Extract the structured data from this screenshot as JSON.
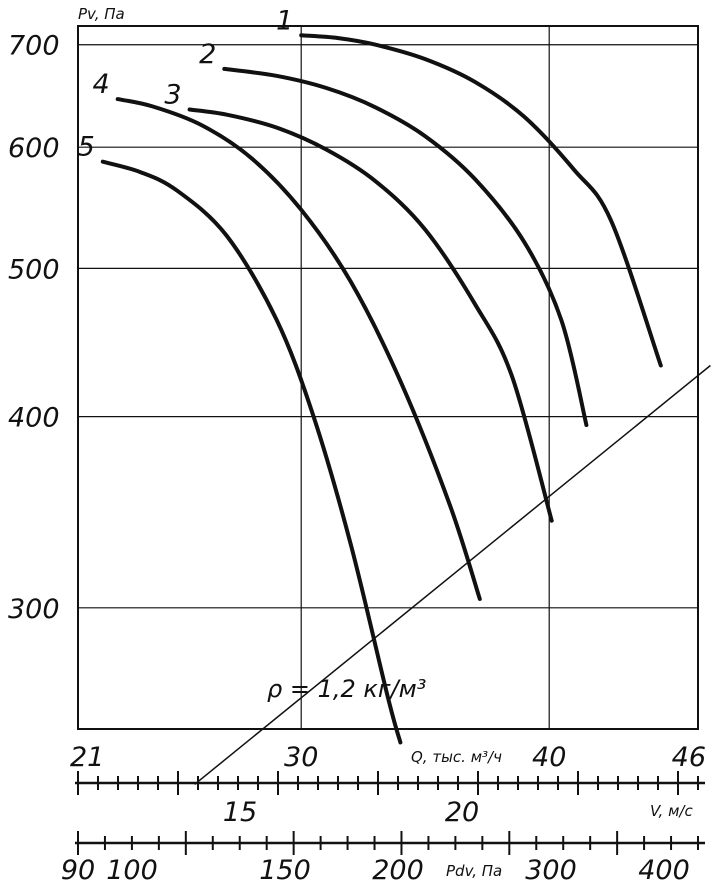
{
  "chart_data": {
    "type": "line",
    "xlabel": "Q, тыс. м³/ч",
    "ylabel": "Pv, Па",
    "annotation": "ρ = 1,2 кг/м³",
    "x_range": [
      21,
      46
    ],
    "y_range": [
      250,
      720
    ],
    "y_scale": "log",
    "x_ticks": [
      {
        "value": 21,
        "label": "21"
      },
      {
        "value": 30,
        "label": "30"
      },
      {
        "value": 40,
        "label": "40"
      },
      {
        "value": 46,
        "label": "46"
      }
    ],
    "y_ticks": [
      {
        "value": 300,
        "label": "300"
      },
      {
        "value": 400,
        "label": "400"
      },
      {
        "value": 500,
        "label": "500"
      },
      {
        "value": 600,
        "label": "600"
      },
      {
        "value": 700,
        "label": "700"
      }
    ],
    "grid_x": [
      30,
      40
    ],
    "grid_y": [
      300,
      400,
      500,
      600,
      700
    ],
    "series": [
      {
        "name": "1",
        "x": [
          30.0,
          31.5,
          33.0,
          35.0,
          37.0,
          39.0,
          41.0,
          42.5,
          44.5
        ],
        "y": [
          710,
          707,
          700,
          685,
          662,
          628,
          580,
          537,
          432
        ]
      },
      {
        "name": "2",
        "x": [
          26.9,
          29.0,
          31.0,
          33.0,
          35.0,
          37.0,
          39.0,
          40.5,
          41.5
        ],
        "y": [
          675,
          668,
          656,
          637,
          610,
          572,
          520,
          462,
          395
        ]
      },
      {
        "name": "3",
        "x": [
          25.5,
          27.0,
          29.0,
          31.0,
          33.0,
          35.0,
          37.0,
          38.5,
          40.1
        ],
        "y": [
          635,
          630,
          618,
          598,
          570,
          530,
          474,
          425,
          342
        ]
      },
      {
        "name": "4",
        "x": [
          22.6,
          24.0,
          26.0,
          28.0,
          30.0,
          32.0,
          34.0,
          36.0,
          37.2
        ],
        "y": [
          645,
          638,
          620,
          590,
          546,
          490,
          422,
          350,
          304
        ]
      },
      {
        "name": "5",
        "x": [
          22.0,
          23.5,
          25.0,
          27.0,
          29.0,
          30.5,
          32.0,
          33.5,
          34.0
        ],
        "y": [
          587,
          578,
          562,
          525,
          463,
          400,
          330,
          262,
          245
        ]
      }
    ],
    "system_line": {
      "x": [
        25.7,
        46.5
      ],
      "y": [
        230,
        432
      ]
    },
    "v_axis": {
      "label": "V, м/с",
      "labels": [
        {
          "value": 15,
          "label": "15"
        },
        {
          "value": 20,
          "label": "20"
        }
      ]
    },
    "pdv_axis": {
      "label": "Pdv, Па",
      "labels": [
        {
          "value": 90,
          "label": "90"
        },
        {
          "value": 100,
          "label": "100"
        },
        {
          "value": 150,
          "label": "150"
        },
        {
          "value": 200,
          "label": "200"
        },
        {
          "value": 300,
          "label": "300"
        },
        {
          "value": 400,
          "label": "400"
        }
      ]
    }
  }
}
